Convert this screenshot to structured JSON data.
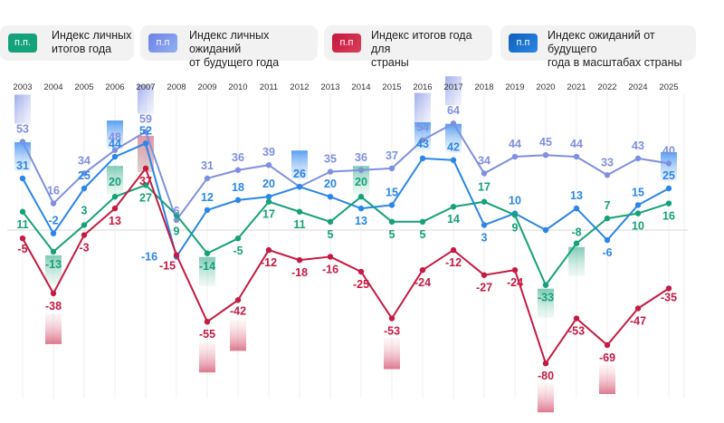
{
  "legend": [
    {
      "badge": "п.п.",
      "text_line1": "Индекс личных",
      "text_line2": "итогов года",
      "color": "#13a27a"
    },
    {
      "badge": "п.п",
      "text_line1": "Индекс личных ожиданий",
      "text_line2": "от будущего года",
      "color": "#7b8fe6"
    },
    {
      "badge": "п.п",
      "text_line1": "Индекс итогов года для",
      "text_line2": "страны",
      "color": "#c8143c"
    },
    {
      "badge": "п.п",
      "text_line1": "Индекс ожиданий от будущего",
      "text_line2": "года в масштабах страны",
      "color": "#1d6fd0"
    }
  ],
  "chart_data": {
    "type": "line",
    "title": "",
    "xlabel": "",
    "ylabel": "",
    "ylim": [
      -85,
      70
    ],
    "grid": "vertical",
    "legend_position": "top",
    "x": [
      "2003",
      "2004",
      "2005",
      "2006",
      "2007",
      "2008",
      "2009",
      "2010",
      "2011",
      "2012",
      "2013",
      "2014",
      "2015",
      "2016",
      "2017",
      "2018",
      "2019",
      "2020",
      "2021",
      "2022",
      "2024",
      "2025"
    ],
    "series": [
      {
        "name": "Индекс личных ожиданий от будущего года",
        "color": "#7f8fe0",
        "values": [
          53,
          16,
          34,
          48,
          59,
          6,
          31,
          36,
          39,
          26,
          35,
          36,
          37,
          54,
          64,
          34,
          44,
          45,
          44,
          33,
          43,
          40
        ],
        "highlight": [
          0,
          4,
          13,
          14
        ]
      },
      {
        "name": "Индекс ожиданий от будущего года в масштабах страны",
        "color": "#2a86e8",
        "values": [
          31,
          -2,
          25,
          44,
          52,
          -16,
          12,
          18,
          20,
          26,
          20,
          13,
          15,
          43,
          42,
          3,
          10,
          0,
          13,
          -6,
          15,
          25
        ],
        "hidden_labels": [
          17
        ],
        "highlight": [
          0,
          3,
          9,
          13,
          14,
          21
        ]
      },
      {
        "name": "Индекс личных итогов года",
        "color": "#15a17a",
        "values": [
          11,
          -13,
          3,
          20,
          27,
          9,
          -14,
          -5,
          17,
          11,
          5,
          20,
          5,
          5,
          14,
          17,
          9,
          -33,
          -8,
          7,
          10,
          16
        ],
        "highlight": [
          1,
          3,
          6,
          11,
          17,
          18
        ]
      },
      {
        "name": "Индекс итогов года для страны",
        "color": "#c51a42",
        "values": [
          -5,
          -38,
          -3,
          13,
          37,
          -15,
          -55,
          -42,
          -12,
          -18,
          -16,
          -25,
          -53,
          -24,
          -12,
          -27,
          -24,
          -80,
          -53,
          -69,
          -47,
          -35
        ],
        "highlight": [
          1,
          4,
          6,
          7,
          12,
          17,
          19
        ]
      }
    ]
  }
}
